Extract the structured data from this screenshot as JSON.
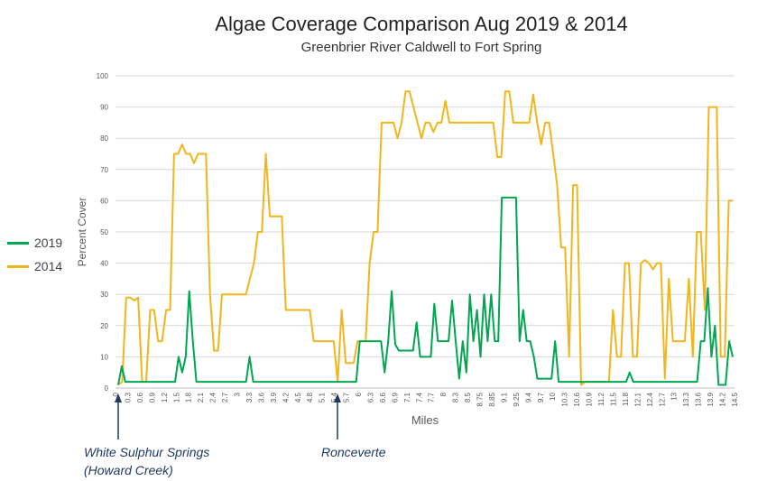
{
  "chart_data": {
    "type": "line",
    "title": "Algae Coverage Comparison Aug 2019 & 2014",
    "subtitle": "Greenbrier River Caldwell to Fort Spring",
    "xlabel": "Miles",
    "ylabel": "Percent Cover",
    "ylim": [
      0,
      100
    ],
    "yticks": [
      "0",
      "10",
      "20",
      "30",
      "40",
      "50",
      "60",
      "70",
      "80",
      "90",
      "100"
    ],
    "grid": true,
    "legend_position": "left",
    "xtick_labels": [
      "0",
      "0.3",
      "0.6",
      "0.9",
      "1.2",
      "1.5",
      "1.8",
      "2.1",
      "2.4",
      "2.7",
      "3",
      "3.3",
      "3.6",
      "3.9",
      "4.2",
      "4.5",
      "4.8",
      "5.1",
      "5.4",
      "5.7",
      "6",
      "6.3",
      "6.6",
      "6.9",
      "7.1",
      "7.4",
      "7.7",
      "8",
      "8.3",
      "8.5",
      "8.75",
      "8.85",
      "9.1",
      "9.25",
      "9.4",
      "9.7",
      "10",
      "10.3",
      "10.6",
      "10.9",
      "11.2",
      "11.5",
      "11.8",
      "12.1",
      "12.4",
      "12.7",
      "13",
      "13.3",
      "13.6",
      "13.9",
      "14.2",
      "14.5"
    ],
    "series": [
      {
        "name": "2019",
        "color": "#00a650",
        "values": [
          1,
          7,
          2,
          2,
          2,
          2,
          2,
          2,
          2,
          2,
          2,
          2,
          2,
          2,
          2,
          2,
          2,
          10,
          5,
          10,
          31,
          15,
          2,
          2,
          2,
          2,
          2,
          2,
          2,
          2,
          2,
          2,
          2,
          2,
          2,
          2,
          2,
          10,
          2,
          2,
          2,
          2,
          2,
          2,
          2,
          2,
          2,
          2,
          2,
          2,
          2,
          2,
          2,
          2,
          2,
          2,
          2,
          2,
          2,
          2,
          2,
          2,
          2,
          2,
          2,
          2,
          2,
          2,
          15,
          15,
          15,
          15,
          15,
          15,
          15,
          5,
          15,
          31,
          14,
          12,
          12,
          12,
          12,
          12,
          21,
          10,
          10,
          10,
          10,
          27,
          15,
          15,
          15,
          15,
          28,
          15,
          3,
          15,
          5,
          30,
          15,
          25,
          10,
          30,
          15,
          30,
          15,
          15,
          61,
          61,
          61,
          61,
          61,
          15,
          25,
          15,
          15,
          10,
          3,
          3,
          3,
          3,
          3,
          15,
          2,
          2,
          2,
          2,
          2,
          2,
          2,
          2,
          2,
          2,
          2,
          2,
          2,
          2,
          2,
          2,
          2,
          2,
          2,
          2,
          5,
          2,
          2,
          2,
          2,
          2,
          2,
          2,
          2,
          2,
          2,
          2,
          2,
          2,
          2,
          2,
          2,
          2,
          2,
          2,
          15,
          15,
          32,
          10,
          20,
          1,
          1,
          1,
          15,
          10
        ]
      },
      {
        "name": "2014",
        "color": "#f2b61d",
        "values": [
          1,
          2,
          29,
          29,
          28,
          29,
          2,
          2,
          25,
          25,
          15,
          15,
          25,
          25,
          75,
          75,
          78,
          75,
          75,
          72,
          75,
          75,
          75,
          30,
          12,
          12,
          30,
          30,
          30,
          30,
          30,
          30,
          30,
          35,
          40,
          50,
          50,
          75,
          55,
          55,
          55,
          55,
          25,
          25,
          25,
          25,
          25,
          25,
          25,
          15,
          15,
          15,
          15,
          15,
          15,
          2,
          25,
          8,
          8,
          8,
          15,
          15,
          15,
          40,
          50,
          50,
          85,
          85,
          85,
          85,
          80,
          85,
          95,
          95,
          90,
          85,
          80,
          85,
          85,
          82,
          85,
          85,
          92,
          85,
          85,
          85,
          85,
          85,
          85,
          85,
          85,
          85,
          85,
          85,
          85,
          74,
          74,
          95,
          95,
          85,
          85,
          85,
          85,
          85,
          94,
          85,
          78,
          85,
          85,
          75,
          65,
          45,
          45,
          10,
          65,
          65,
          1,
          2,
          2,
          2,
          2,
          2,
          2,
          2,
          25,
          10,
          10,
          40,
          40,
          10,
          10,
          40,
          41,
          40,
          38,
          40,
          40,
          3,
          35,
          15,
          15,
          15,
          15,
          35,
          10,
          50,
          50,
          25,
          90,
          90,
          90,
          10,
          10,
          60,
          60
        ]
      }
    ]
  },
  "annotations": {
    "white_sulphur_line1": "White Sulphur Springs",
    "white_sulphur_line2": "(Howard Creek)",
    "ronceverte": "Ronceverte"
  }
}
